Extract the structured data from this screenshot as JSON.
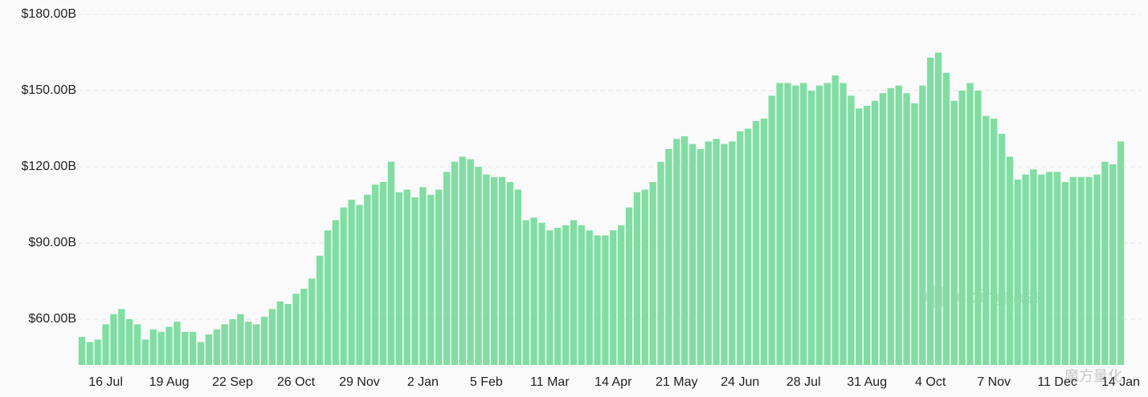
{
  "chart_data": {
    "type": "bar",
    "color": "#7fdea1",
    "watermark": "coinglass",
    "credit": "魔方量化",
    "ylim": [
      42,
      180
    ],
    "yticks": [
      {
        "value": 60,
        "label": "$60.00B"
      },
      {
        "value": 90,
        "label": "$90.00B"
      },
      {
        "value": 120,
        "label": "$120.00B"
      },
      {
        "value": 150,
        "label": "$150.00B"
      },
      {
        "value": 180,
        "label": "$180.00B"
      }
    ],
    "grid": true,
    "categories": [
      null,
      null,
      null,
      "16 Jul",
      null,
      null,
      null,
      null,
      null,
      null,
      null,
      "19 Aug",
      null,
      null,
      null,
      null,
      null,
      null,
      null,
      "22 Sep",
      null,
      null,
      null,
      null,
      null,
      null,
      null,
      "26 Oct",
      null,
      null,
      null,
      null,
      null,
      null,
      null,
      "29 Nov",
      null,
      null,
      null,
      null,
      null,
      null,
      null,
      "2 Jan",
      null,
      null,
      null,
      null,
      null,
      null,
      null,
      "5 Feb",
      null,
      null,
      null,
      null,
      null,
      null,
      null,
      "11 Mar",
      null,
      null,
      null,
      null,
      null,
      null,
      null,
      "14 Apr",
      null,
      null,
      null,
      null,
      null,
      null,
      null,
      "21 May",
      null,
      null,
      null,
      null,
      null,
      null,
      null,
      "24 Jun",
      null,
      null,
      null,
      null,
      null,
      null,
      null,
      "28 Jul",
      null,
      null,
      null,
      null,
      null,
      null,
      null,
      "31 Aug",
      null,
      null,
      null,
      null,
      null,
      null,
      null,
      "4 Oct",
      null,
      null,
      null,
      null,
      null,
      null,
      null,
      "7 Nov",
      null,
      null,
      null,
      null,
      null,
      null,
      null,
      "11 Dec",
      null,
      null,
      null,
      null,
      null,
      null,
      null,
      "14 Jan"
    ],
    "values": [
      53,
      51,
      52,
      58,
      62,
      64,
      60,
      58,
      52,
      56,
      55,
      57,
      59,
      55,
      55,
      51,
      54,
      56,
      58,
      60,
      62,
      59,
      58,
      61,
      64,
      67,
      66,
      70,
      72,
      76,
      85,
      95,
      99,
      104,
      107,
      105,
      109,
      113,
      114,
      122,
      110,
      111,
      108,
      112,
      109,
      111,
      118,
      122,
      124,
      123,
      120,
      117,
      116,
      116,
      114,
      111,
      99,
      100,
      98,
      95,
      96,
      97,
      99,
      97,
      95,
      93,
      93,
      95,
      97,
      104,
      110,
      111,
      114,
      122,
      127,
      131,
      132,
      129,
      127,
      130,
      131,
      129,
      130,
      134,
      135,
      138,
      139,
      148,
      153,
      153,
      152,
      153,
      150,
      152,
      153,
      156,
      153,
      148,
      143,
      144,
      146,
      149,
      151,
      152,
      149,
      145,
      152,
      163,
      165,
      157,
      146,
      150,
      153,
      150,
      140,
      139,
      133,
      124,
      115,
      117,
      119,
      117,
      118,
      118,
      114,
      116,
      116,
      116,
      117,
      122,
      121,
      130
    ]
  }
}
